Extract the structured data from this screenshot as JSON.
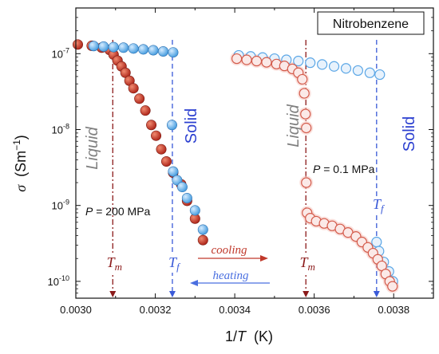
{
  "chart_data": {
    "type": "scatter",
    "title": "Nitrobenzene",
    "xlabel": {
      "pre": "1/",
      "var": "T",
      "post": "  (K)"
    },
    "ylabel": {
      "var": "σ",
      "post": "  (Sm",
      "sup": "−1",
      "end": ")"
    },
    "x_scale": "linear",
    "y_scale": "log",
    "xlim": [
      0.003,
      0.0039
    ],
    "ylim": [
      6e-11,
      4e-07
    ],
    "xticks": [
      {
        "v": 0.003,
        "label": "0.0030"
      },
      {
        "v": 0.0032,
        "label": "0.0032"
      },
      {
        "v": 0.0034,
        "label": "0.0034"
      },
      {
        "v": 0.0036,
        "label": "0.0036"
      },
      {
        "v": 0.0038,
        "label": "0.0038"
      }
    ],
    "yticks": [
      {
        "v": 1e-10,
        "base": "10",
        "exp": "-10"
      },
      {
        "v": 1e-09,
        "base": "10",
        "exp": "-9"
      },
      {
        "v": 1e-08,
        "base": "10",
        "exp": "-8"
      },
      {
        "v": 1e-07,
        "base": "10",
        "exp": "-7"
      }
    ],
    "colors": {
      "cooling": "#c0392b",
      "heating": "#4a9fe0",
      "tm_line": "#8b1a1a",
      "tf_line": "#3a5ad8"
    },
    "series": [
      {
        "key": "cooling_200MPa",
        "style": "filled_red",
        "points": [
          [
            0.003005,
            1.32e-07
          ],
          [
            0.00304,
            1.27e-07
          ],
          [
            0.003065,
            1.2e-07
          ],
          [
            0.003085,
            1.12e-07
          ],
          [
            0.003095,
            9.7e-08
          ],
          [
            0.003105,
            8.1e-08
          ],
          [
            0.003115,
            6.8e-08
          ],
          [
            0.003125,
            5.6e-08
          ],
          [
            0.003135,
            4.4e-08
          ],
          [
            0.003145,
            3.5e-08
          ],
          [
            0.00316,
            2.55e-08
          ],
          [
            0.003175,
            1.78e-08
          ],
          [
            0.00319,
            1.15e-08
          ],
          [
            0.003202,
            8.3e-09
          ],
          [
            0.003215,
            5.5e-09
          ],
          [
            0.003228,
            3.8e-09
          ],
          [
            0.003245,
            2.7e-09
          ],
          [
            0.003265,
            1.9e-09
          ],
          [
            0.00328,
            1.15e-09
          ],
          [
            0.0033,
            6.7e-10
          ],
          [
            0.00332,
            3.5e-10
          ]
        ]
      },
      {
        "key": "heating_200MPa",
        "style": "filled_blue",
        "points": [
          [
            0.003045,
            1.26e-07
          ],
          [
            0.00307,
            1.24e-07
          ],
          [
            0.003095,
            1.22e-07
          ],
          [
            0.00312,
            1.2e-07
          ],
          [
            0.003145,
            1.17e-07
          ],
          [
            0.00317,
            1.14e-07
          ],
          [
            0.003195,
            1.11e-07
          ],
          [
            0.00322,
            1.07e-07
          ],
          [
            0.003245,
            1.04e-07
          ],
          [
            0.003242,
            1.15e-08
          ],
          [
            0.003245,
            2.8e-09
          ],
          [
            0.003255,
            2.15e-09
          ],
          [
            0.003268,
            1.75e-09
          ],
          [
            0.00328,
            1.25e-09
          ],
          [
            0.0033,
            8.6e-10
          ],
          [
            0.00332,
            4.8e-10
          ]
        ]
      },
      {
        "key": "heating_0.1MPa",
        "style": "open_blue",
        "points": [
          [
            0.00341,
            9.5e-08
          ],
          [
            0.00344,
            9.2e-08
          ],
          [
            0.00347,
            8.9e-08
          ],
          [
            0.0035,
            8.6e-08
          ],
          [
            0.00353,
            8.3e-08
          ],
          [
            0.00356,
            8e-08
          ],
          [
            0.00359,
            7.6e-08
          ],
          [
            0.00362,
            7.2e-08
          ],
          [
            0.00365,
            6.8e-08
          ],
          [
            0.00368,
            6.4e-08
          ],
          [
            0.00371,
            6e-08
          ],
          [
            0.00374,
            5.6e-08
          ],
          [
            0.003765,
            5.3e-08
          ],
          [
            0.003757,
            3.3e-10
          ],
          [
            0.003763,
            2.5e-10
          ],
          [
            0.003775,
            1.8e-10
          ],
          [
            0.003788,
            1.35e-10
          ],
          [
            0.003798,
            1e-10
          ]
        ]
      },
      {
        "key": "cooling_0.1MPa",
        "style": "open_red",
        "points": [
          [
            0.003405,
            8.6e-08
          ],
          [
            0.00343,
            8.3e-08
          ],
          [
            0.003455,
            8e-08
          ],
          [
            0.00348,
            7.7e-08
          ],
          [
            0.003505,
            7.3e-08
          ],
          [
            0.003525,
            6.9e-08
          ],
          [
            0.003545,
            6.3e-08
          ],
          [
            0.00356,
            5.6e-08
          ],
          [
            0.00357,
            4.6e-08
          ],
          [
            0.003575,
            3e-08
          ],
          [
            0.003578,
            1.6e-08
          ],
          [
            0.00358,
            1.05e-08
          ],
          [
            0.00358,
            2e-09
          ],
          [
            0.003582,
            8e-10
          ],
          [
            0.00359,
            6.8e-10
          ],
          [
            0.003605,
            6.2e-10
          ],
          [
            0.003625,
            5.8e-10
          ],
          [
            0.003645,
            5.4e-10
          ],
          [
            0.003665,
            4.9e-10
          ],
          [
            0.003685,
            4.4e-10
          ],
          [
            0.003705,
            3.9e-10
          ],
          [
            0.00372,
            3.3e-10
          ],
          [
            0.003735,
            2.8e-10
          ],
          [
            0.003748,
            2.35e-10
          ],
          [
            0.00376,
            1.95e-10
          ],
          [
            0.00377,
            1.6e-10
          ],
          [
            0.00378,
            1.25e-10
          ],
          [
            0.00379,
            1e-10
          ],
          [
            0.003797,
            8.6e-11
          ]
        ]
      }
    ],
    "vlines": [
      {
        "key": "tm_200",
        "x": 0.003093,
        "kind": "tm",
        "label": "T",
        "sub": "m"
      },
      {
        "key": "tf_200",
        "x": 0.003243,
        "kind": "tf",
        "label": "T",
        "sub": "f"
      },
      {
        "key": "tm_01",
        "x": 0.003579,
        "kind": "tm",
        "label": "T",
        "sub": "m"
      },
      {
        "key": "tf_01",
        "x": 0.003757,
        "kind": "tf",
        "label": "T",
        "sub": "f"
      }
    ],
    "phase_labels": [
      {
        "key": "liquid-left",
        "text": "Liquid",
        "color": "#808080",
        "italic": true
      },
      {
        "key": "solid-left",
        "text": "Solid",
        "color": "#2b3fd0",
        "italic": false
      },
      {
        "key": "liquid-right",
        "text": "Liquid",
        "color": "#808080",
        "italic": true
      },
      {
        "key": "solid-right",
        "text": "Solid",
        "color": "#2b3fd0",
        "italic": false
      }
    ],
    "annotations": {
      "pressure_high": {
        "var": "P",
        "rest": " = 200 MPa"
      },
      "pressure_low": {
        "var": "P",
        "rest": " = 0.1 MPa"
      },
      "cooling": "cooling",
      "heating": "heating"
    }
  }
}
